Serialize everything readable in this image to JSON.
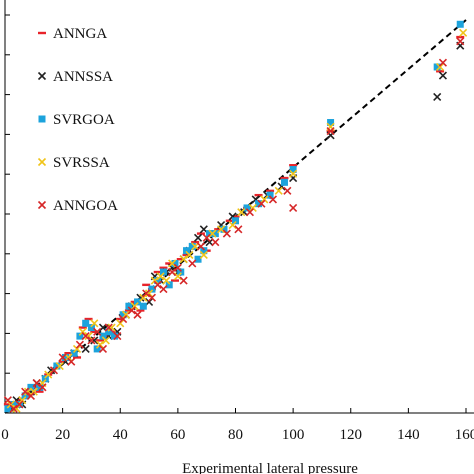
{
  "chart_data": {
    "type": "scatter",
    "title": "",
    "xlabel": "Experimental lateral pressure",
    "ylabel": "",
    "xlim": [
      0,
      160
    ],
    "ylim": [
      0,
      92
    ],
    "x_ticks": [
      "0",
      "20",
      "40",
      "60",
      "80",
      "100",
      "120",
      "140",
      "160"
    ],
    "grid": false,
    "legend_position": "top-left",
    "reference_line": {
      "style": "dashed",
      "color": "#000000",
      "x": [
        0,
        160
      ],
      "y": [
        0,
        92
      ]
    },
    "series": [
      {
        "name": "ANNGA",
        "marker": "dash",
        "color": "#e8232a",
        "points": [
          [
            1,
            2
          ],
          [
            3,
            1
          ],
          [
            5,
            3
          ],
          [
            8,
            4
          ],
          [
            10,
            6
          ],
          [
            12,
            5
          ],
          [
            15,
            9
          ],
          [
            20,
            12
          ],
          [
            22,
            14
          ],
          [
            25,
            13
          ],
          [
            27,
            20
          ],
          [
            29,
            22
          ],
          [
            31,
            19
          ],
          [
            33,
            17
          ],
          [
            35,
            18
          ],
          [
            37,
            19
          ],
          [
            40,
            22
          ],
          [
            43,
            24
          ],
          [
            45,
            26
          ],
          [
            47,
            24
          ],
          [
            49,
            30
          ],
          [
            51,
            29
          ],
          [
            53,
            33
          ],
          [
            55,
            34
          ],
          [
            57,
            35
          ],
          [
            59,
            31
          ],
          [
            61,
            36
          ],
          [
            63,
            37
          ],
          [
            66,
            40
          ],
          [
            68,
            42
          ],
          [
            70,
            38
          ],
          [
            74,
            43
          ],
          [
            78,
            45
          ],
          [
            80,
            46
          ],
          [
            84,
            48
          ],
          [
            88,
            51
          ],
          [
            92,
            52
          ],
          [
            97,
            55
          ],
          [
            100,
            58
          ],
          [
            113,
            66
          ],
          [
            151,
            80
          ],
          [
            158,
            88
          ]
        ]
      },
      {
        "name": "ANNSSA",
        "marker": "x",
        "color": "#222222",
        "points": [
          [
            2,
            1
          ],
          [
            4,
            3
          ],
          [
            6,
            2
          ],
          [
            9,
            5
          ],
          [
            11,
            7
          ],
          [
            14,
            8
          ],
          [
            16,
            10
          ],
          [
            21,
            12
          ],
          [
            24,
            14
          ],
          [
            28,
            15
          ],
          [
            31,
            17
          ],
          [
            34,
            20
          ],
          [
            36,
            18
          ],
          [
            39,
            19
          ],
          [
            42,
            23
          ],
          [
            44,
            25
          ],
          [
            47,
            27
          ],
          [
            50,
            26
          ],
          [
            52,
            32
          ],
          [
            54,
            31
          ],
          [
            56,
            33
          ],
          [
            58,
            34
          ],
          [
            60,
            33
          ],
          [
            62,
            36
          ],
          [
            64,
            38
          ],
          [
            67,
            41
          ],
          [
            69,
            43
          ],
          [
            71,
            40
          ],
          [
            75,
            44
          ],
          [
            79,
            46
          ],
          [
            83,
            47
          ],
          [
            87,
            50
          ],
          [
            91,
            51
          ],
          [
            96,
            53
          ],
          [
            100,
            55
          ],
          [
            113,
            65
          ],
          [
            150,
            74
          ],
          [
            152,
            79
          ],
          [
            158,
            86
          ]
        ]
      },
      {
        "name": "SVRGOA",
        "marker": "square",
        "color": "#1ca3dc",
        "points": [
          [
            1,
            1
          ],
          [
            3,
            2
          ],
          [
            5,
            2
          ],
          [
            7,
            4
          ],
          [
            9,
            6
          ],
          [
            12,
            6
          ],
          [
            14,
            8
          ],
          [
            18,
            11
          ],
          [
            21,
            13
          ],
          [
            24,
            14
          ],
          [
            26,
            18
          ],
          [
            28,
            21
          ],
          [
            30,
            20
          ],
          [
            32,
            15
          ],
          [
            34,
            18
          ],
          [
            36,
            19
          ],
          [
            38,
            18
          ],
          [
            41,
            23
          ],
          [
            43,
            25
          ],
          [
            46,
            26
          ],
          [
            48,
            25
          ],
          [
            51,
            29
          ],
          [
            53,
            31
          ],
          [
            55,
            33
          ],
          [
            57,
            30
          ],
          [
            59,
            35
          ],
          [
            61,
            33
          ],
          [
            63,
            38
          ],
          [
            65,
            39
          ],
          [
            67,
            36
          ],
          [
            69,
            38
          ],
          [
            71,
            42
          ],
          [
            73,
            42
          ],
          [
            76,
            43
          ],
          [
            80,
            45
          ],
          [
            84,
            48
          ],
          [
            88,
            49
          ],
          [
            92,
            51
          ],
          [
            97,
            54
          ],
          [
            100,
            57
          ],
          [
            113,
            68
          ],
          [
            150,
            81
          ],
          [
            158,
            91
          ]
        ]
      },
      {
        "name": "SVRSSA",
        "marker": "x",
        "color": "#f0c419",
        "points": [
          [
            2,
            2
          ],
          [
            4,
            1
          ],
          [
            6,
            3
          ],
          [
            8,
            5
          ],
          [
            10,
            5
          ],
          [
            13,
            7
          ],
          [
            15,
            9
          ],
          [
            19,
            11
          ],
          [
            22,
            13
          ],
          [
            25,
            15
          ],
          [
            27,
            19
          ],
          [
            29,
            18
          ],
          [
            31,
            21
          ],
          [
            33,
            16
          ],
          [
            35,
            17
          ],
          [
            37,
            20
          ],
          [
            40,
            21
          ],
          [
            42,
            23
          ],
          [
            45,
            25
          ],
          [
            48,
            27
          ],
          [
            50,
            28
          ],
          [
            52,
            31
          ],
          [
            54,
            32
          ],
          [
            56,
            31
          ],
          [
            58,
            35
          ],
          [
            60,
            32
          ],
          [
            62,
            36
          ],
          [
            64,
            37
          ],
          [
            66,
            39
          ],
          [
            69,
            37
          ],
          [
            72,
            42
          ],
          [
            75,
            43
          ],
          [
            79,
            44
          ],
          [
            82,
            47
          ],
          [
            86,
            48
          ],
          [
            90,
            50
          ],
          [
            95,
            52
          ],
          [
            100,
            56
          ],
          [
            113,
            67
          ],
          [
            151,
            81
          ],
          [
            159,
            89
          ]
        ]
      },
      {
        "name": "ANNGOA",
        "marker": "x",
        "color": "#d62728",
        "points": [
          [
            1,
            3
          ],
          [
            3,
            1
          ],
          [
            5,
            2
          ],
          [
            7,
            5
          ],
          [
            9,
            4
          ],
          [
            11,
            7
          ],
          [
            13,
            6
          ],
          [
            17,
            10
          ],
          [
            20,
            13
          ],
          [
            23,
            12
          ],
          [
            26,
            16
          ],
          [
            28,
            18
          ],
          [
            30,
            17
          ],
          [
            32,
            19
          ],
          [
            34,
            15
          ],
          [
            36,
            20
          ],
          [
            39,
            18
          ],
          [
            41,
            22
          ],
          [
            44,
            24
          ],
          [
            46,
            23
          ],
          [
            49,
            28
          ],
          [
            51,
            27
          ],
          [
            53,
            30
          ],
          [
            55,
            29
          ],
          [
            58,
            33
          ],
          [
            60,
            34
          ],
          [
            62,
            31
          ],
          [
            65,
            35
          ],
          [
            68,
            39
          ],
          [
            70,
            41
          ],
          [
            73,
            40
          ],
          [
            77,
            42
          ],
          [
            81,
            43
          ],
          [
            85,
            47
          ],
          [
            89,
            49
          ],
          [
            93,
            50
          ],
          [
            98,
            52
          ],
          [
            100,
            48
          ],
          [
            113,
            66
          ],
          [
            152,
            82
          ],
          [
            158,
            87
          ]
        ]
      }
    ]
  }
}
